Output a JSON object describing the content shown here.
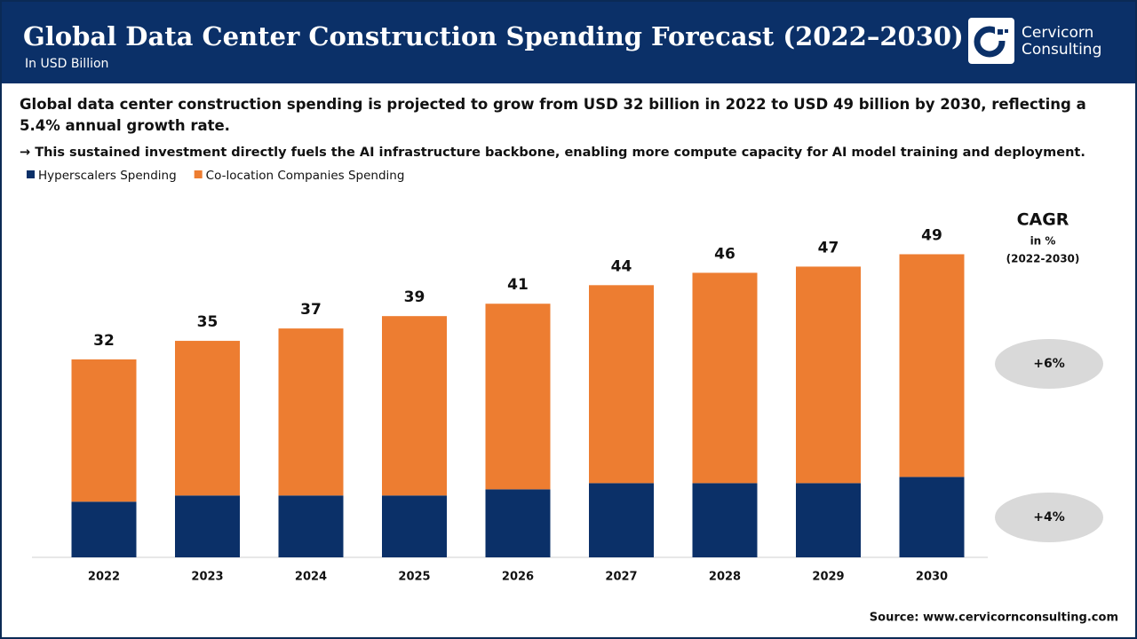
{
  "brand": [
    "Cervicorn",
    "Consulting"
  ],
  "chart_data": {
    "type": "stacked-bar",
    "title": "Global Data Center Construction Spending Forecast (2022–2030)",
    "subtitle": "In USD Billion",
    "description": [
      "Global data center construction spending is projected to grow from USD 32 billion in 2022 to USD 49 billion by 2030, reflecting a 5.4% annual growth rate.",
      "→ This sustained investment directly fuels the AI infrastructure backbone, enabling more compute capacity for AI model training and deployment."
    ],
    "categories": [
      "2022",
      "2023",
      "2024",
      "2025",
      "2026",
      "2027",
      "2028",
      "2029",
      "2030"
    ],
    "series": [
      {
        "name": "Hyperscalers Spending",
        "color": "#0b3068",
        "values": [
          9,
          10,
          10,
          10,
          11,
          12,
          12,
          12,
          13
        ]
      },
      {
        "name": "Co-location Companies Spending",
        "color": "#ed7d31",
        "values": [
          23,
          25,
          27,
          29,
          30,
          32,
          34,
          35,
          36
        ]
      }
    ],
    "totals": [
      32,
      35,
      37,
      39,
      41,
      44,
      46,
      47,
      49
    ],
    "cagr": {
      "title": "CAGR",
      "unit": "in %",
      "period": "(2022-2030)",
      "labels": [
        "+6%",
        "+4%"
      ]
    },
    "source": "Source: www.cervicornconsulting.com"
  }
}
